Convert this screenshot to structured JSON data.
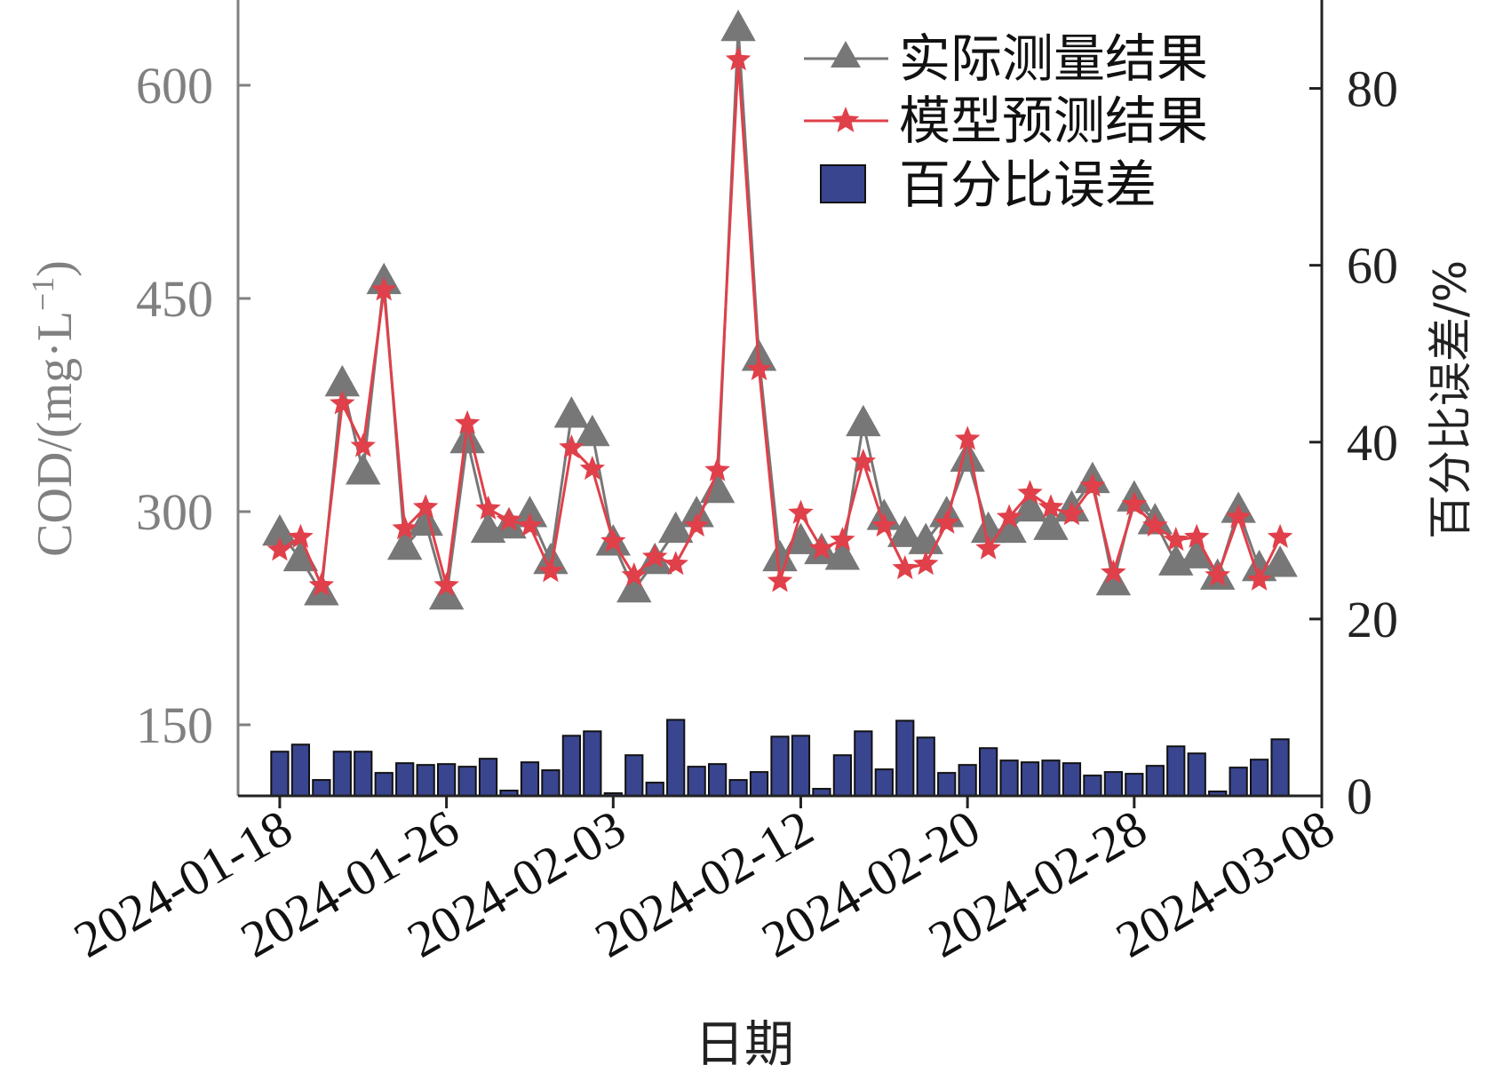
{
  "chart_data": {
    "type": "line+bar",
    "xlabel": "日期",
    "x_tick_labels": [
      "2024-01-18",
      "2024-01-26",
      "2024-02-03",
      "2024-02-12",
      "2024-02-20",
      "2024-02-28",
      "2024-03-08"
    ],
    "y_left": {
      "label": "COD/(mg·L",
      "label_superscript": "−1",
      "label_close": ")",
      "ticks": [
        150,
        300,
        450,
        600
      ],
      "range": [
        100,
        660
      ],
      "color": "#808080"
    },
    "y_right": {
      "label": "百分比误差/%",
      "ticks": [
        0,
        20,
        40,
        60,
        80
      ],
      "range": [
        0,
        90
      ],
      "color": "#222222"
    },
    "legend": {
      "position": "top-right",
      "entries": [
        "实际测量结果",
        "模型预测结果",
        "百分比误差"
      ]
    },
    "x_start": "2024-01-18",
    "x_tick_dates": [
      "2024-01-18",
      "2024-01-26",
      "2024-02-03",
      "2024-02-12",
      "2024-02-20",
      "2024-02-28",
      "2024-03-08"
    ],
    "x_range": [
      "2024-01-16",
      "2024-03-08"
    ],
    "series": [
      {
        "name": "实际测量结果",
        "type": "line",
        "marker": "triangle",
        "color": "#777777",
        "x": [
          "2024-01-18",
          "2024-01-19",
          "2024-01-20",
          "2024-01-21",
          "2024-01-22",
          "2024-01-23",
          "2024-01-24",
          "2024-01-25",
          "2024-01-26",
          "2024-01-27",
          "2024-01-28",
          "2024-01-29",
          "2024-01-30",
          "2024-01-31",
          "2024-02-01",
          "2024-02-02",
          "2024-02-03",
          "2024-02-04",
          "2024-02-05",
          "2024-02-06",
          "2024-02-07",
          "2024-02-08",
          "2024-02-09",
          "2024-02-10",
          "2024-02-11",
          "2024-02-12",
          "2024-02-13",
          "2024-02-14",
          "2024-02-15",
          "2024-02-16",
          "2024-02-17",
          "2024-02-18",
          "2024-02-19",
          "2024-02-20",
          "2024-02-21",
          "2024-02-22",
          "2024-02-23",
          "2024-02-24",
          "2024-02-25",
          "2024-02-26",
          "2024-02-27",
          "2024-02-28",
          "2024-02-29",
          "2024-03-01",
          "2024-03-02",
          "2024-03-03",
          "2024-03-04",
          "2024-03-05",
          "2024-03-06"
        ],
        "values": [
          285,
          267,
          243,
          390,
          328,
          462,
          275,
          292,
          240,
          350,
          287,
          290,
          298,
          265,
          368,
          355,
          278,
          245,
          265,
          287,
          298,
          315,
          640,
          408,
          267,
          279,
          272,
          268,
          362,
          296,
          284,
          279,
          298,
          337,
          287,
          287,
          302,
          289,
          302,
          322,
          250,
          309,
          293,
          264,
          269,
          254,
          301,
          260,
          263
        ]
      },
      {
        "name": "模型预测结果",
        "type": "line",
        "marker": "star",
        "color": "#e0404a",
        "x": [
          "2024-01-18",
          "2024-01-19",
          "2024-01-20",
          "2024-01-21",
          "2024-01-22",
          "2024-01-23",
          "2024-01-24",
          "2024-01-25",
          "2024-01-26",
          "2024-01-27",
          "2024-01-28",
          "2024-01-29",
          "2024-01-30",
          "2024-01-31",
          "2024-02-01",
          "2024-02-02",
          "2024-02-03",
          "2024-02-04",
          "2024-02-05",
          "2024-02-06",
          "2024-02-07",
          "2024-02-08",
          "2024-02-09",
          "2024-02-10",
          "2024-02-11",
          "2024-02-12",
          "2024-02-13",
          "2024-02-14",
          "2024-02-15",
          "2024-02-16",
          "2024-02-17",
          "2024-02-18",
          "2024-02-19",
          "2024-02-20",
          "2024-02-21",
          "2024-02-22",
          "2024-02-23",
          "2024-02-24",
          "2024-02-25",
          "2024-02-26",
          "2024-02-27",
          "2024-02-28",
          "2024-02-29",
          "2024-03-01",
          "2024-03-02",
          "2024-03-03",
          "2024-03-04",
          "2024-03-05",
          "2024-03-06"
        ],
        "values": [
          273,
          282,
          248,
          376,
          346,
          456,
          288,
          303,
          248,
          362,
          302,
          294,
          290,
          258,
          345,
          330,
          279,
          255,
          268,
          263,
          290,
          329,
          618,
          400,
          251,
          299,
          274,
          280,
          335,
          290,
          260,
          263,
          292,
          351,
          274,
          296,
          313,
          303,
          298,
          318,
          257,
          305,
          290,
          280,
          282,
          255,
          296,
          252,
          282
        ]
      },
      {
        "name": "百分比误差",
        "type": "bar",
        "axis": "right",
        "color": "#3a4590",
        "x": [
          "2024-01-18",
          "2024-01-19",
          "2024-01-20",
          "2024-01-21",
          "2024-01-22",
          "2024-01-23",
          "2024-01-24",
          "2024-01-25",
          "2024-01-26",
          "2024-01-27",
          "2024-01-28",
          "2024-01-29",
          "2024-01-30",
          "2024-01-31",
          "2024-02-01",
          "2024-02-02",
          "2024-02-03",
          "2024-02-04",
          "2024-02-05",
          "2024-02-06",
          "2024-02-07",
          "2024-02-08",
          "2024-02-09",
          "2024-02-10",
          "2024-02-11",
          "2024-02-12",
          "2024-02-13",
          "2024-02-14",
          "2024-02-15",
          "2024-02-16",
          "2024-02-17",
          "2024-02-18",
          "2024-02-19",
          "2024-02-20",
          "2024-02-21",
          "2024-02-22",
          "2024-02-23",
          "2024-02-24",
          "2024-02-25",
          "2024-02-26",
          "2024-02-27",
          "2024-02-28",
          "2024-02-29",
          "2024-03-01",
          "2024-03-02",
          "2024-03-03",
          "2024-03-04",
          "2024-03-05",
          "2024-03-06"
        ],
        "values": [
          5.0,
          5.8,
          1.8,
          5.0,
          5.0,
          2.6,
          3.7,
          3.5,
          3.6,
          3.3,
          4.2,
          0.6,
          3.8,
          2.9,
          6.8,
          7.3,
          0.3,
          4.6,
          1.5,
          8.6,
          3.3,
          3.6,
          1.8,
          2.7,
          6.7,
          6.8,
          0.8,
          4.6,
          7.3,
          3.0,
          8.5,
          6.6,
          2.6,
          3.5,
          5.4,
          4.0,
          3.8,
          4.0,
          3.7,
          2.3,
          2.7,
          2.5,
          3.4,
          5.6,
          4.8,
          0.5,
          3.2,
          4.1,
          6.4
        ]
      }
    ]
  }
}
